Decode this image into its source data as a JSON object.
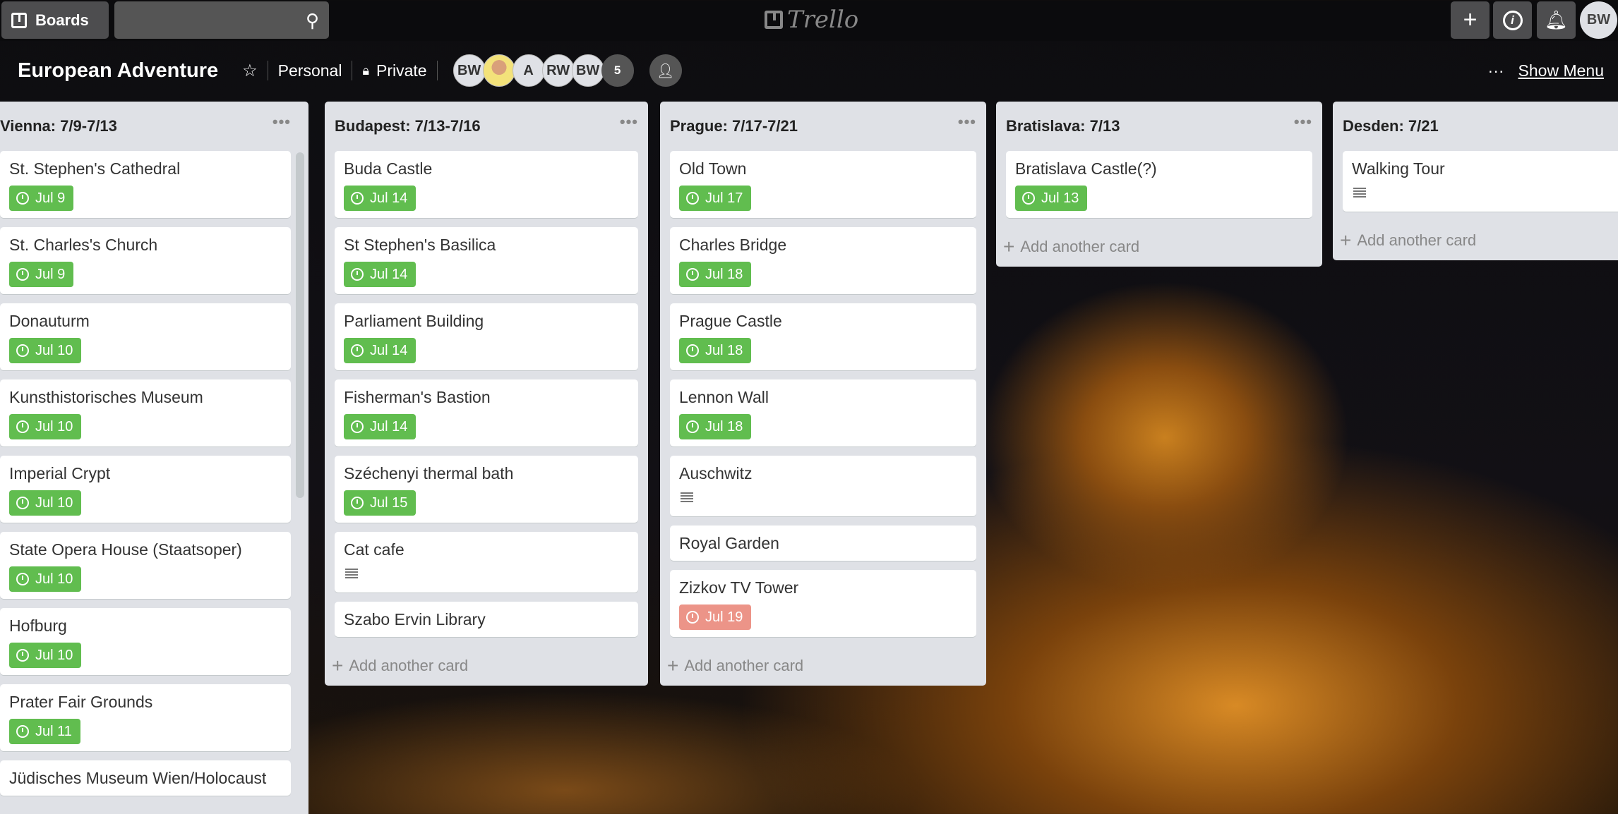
{
  "topbar": {
    "boards_label": "Boards",
    "logo": "Trello",
    "user_initials": "BW",
    "icons": [
      "board-icon",
      "search-icon",
      "plus-icon",
      "info-icon",
      "bell-icon"
    ]
  },
  "board": {
    "title": "European Adventure",
    "team": "Personal",
    "visibility": "Private",
    "members": [
      "BW",
      "",
      "A",
      "RW",
      "BW"
    ],
    "more_members": "5",
    "menu_dots": "···",
    "show_menu": "Show Menu"
  },
  "colors": {
    "green": "#61bd4f",
    "red": "#ec9488",
    "list_bg": "#dfe1e6"
  },
  "add_card": "Add another card",
  "lists": [
    {
      "title": "Vienna: 7/9-7/13",
      "cards": [
        {
          "title": "St. Stephen's Cathedral",
          "due": "Jul 9",
          "status": "green"
        },
        {
          "title": "St. Charles's Church",
          "due": "Jul 9",
          "status": "green"
        },
        {
          "title": "Donauturm",
          "due": "Jul 10",
          "status": "green"
        },
        {
          "title": "Kunsthistorisches Museum",
          "due": "Jul 10",
          "status": "green"
        },
        {
          "title": "Imperial Crypt",
          "due": "Jul 10",
          "status": "green"
        },
        {
          "title": "State Opera House (Staatsoper)",
          "due": "Jul 10",
          "status": "green"
        },
        {
          "title": "Hofburg",
          "due": "Jul 10",
          "status": "green"
        },
        {
          "title": "Prater Fair Grounds",
          "due": "Jul 11",
          "status": "green"
        },
        {
          "title": "Jüdisches Museum Wien/Holocaust"
        }
      ]
    },
    {
      "title": "Budapest: 7/13-7/16",
      "cards": [
        {
          "title": "Buda Castle",
          "due": "Jul 14",
          "status": "green"
        },
        {
          "title": "St Stephen's Basilica",
          "due": "Jul 14",
          "status": "green"
        },
        {
          "title": "Parliament Building",
          "due": "Jul 14",
          "status": "green"
        },
        {
          "title": "Fisherman's Bastion",
          "due": "Jul 14",
          "status": "green"
        },
        {
          "title": "Széchenyi thermal bath",
          "due": "Jul 15",
          "status": "green"
        },
        {
          "title": "Cat cafe",
          "description": true
        },
        {
          "title": "Szabo Ervin Library"
        }
      ]
    },
    {
      "title": "Prague: 7/17-7/21",
      "cards": [
        {
          "title": "Old Town",
          "due": "Jul 17",
          "status": "green"
        },
        {
          "title": "Charles Bridge",
          "due": "Jul 18",
          "status": "green"
        },
        {
          "title": "Prague Castle",
          "due": "Jul 18",
          "status": "green"
        },
        {
          "title": "Lennon Wall",
          "due": "Jul 18",
          "status": "green"
        },
        {
          "title": "Auschwitz",
          "description": true
        },
        {
          "title": "Royal Garden"
        },
        {
          "title": "Zizkov TV Tower",
          "due": "Jul 19",
          "status": "red"
        }
      ]
    },
    {
      "title": "Bratislava: 7/13",
      "cards": [
        {
          "title": "Bratislava Castle(?)",
          "due": "Jul 13",
          "status": "green"
        }
      ]
    },
    {
      "title": "Desden: 7/21",
      "cards": [
        {
          "title": "Walking Tour",
          "description": true
        }
      ]
    }
  ]
}
